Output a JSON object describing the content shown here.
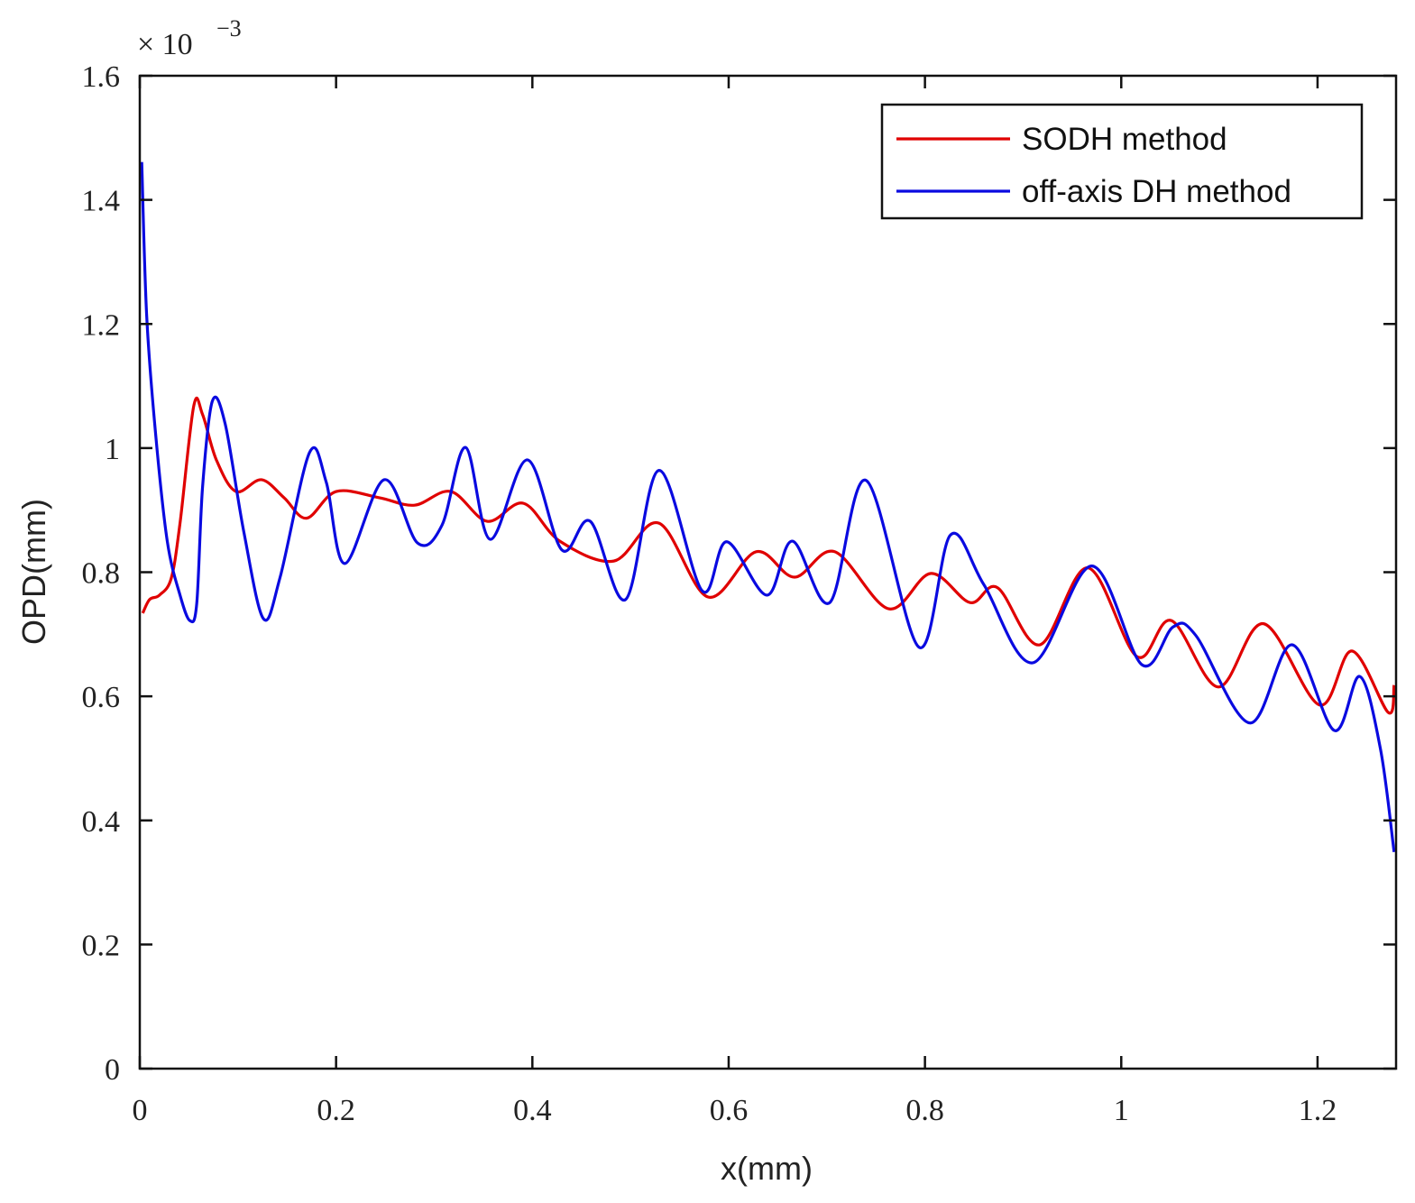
{
  "chart_data": {
    "type": "line",
    "x_label": "x(mm)",
    "y_label": "OPD(mm)",
    "y_exponent": "× 10",
    "y_exponent_power": "−3",
    "xlim": [
      0,
      1.28
    ],
    "xticks": [
      0,
      0.2,
      0.4,
      0.6,
      0.8,
      1,
      1.2
    ],
    "ylim": [
      0,
      1.6
    ],
    "yticks": [
      0,
      0.2,
      0.4,
      0.6,
      0.8,
      1,
      1.2,
      1.4,
      1.6
    ],
    "grid": false,
    "legend_position": "northeast",
    "series": [
      {
        "name": "SODH method",
        "color": "#e00000",
        "x": [
          0.003,
          0.01,
          0.02,
          0.032,
          0.041,
          0.055,
          0.064,
          0.078,
          0.098,
          0.124,
          0.147,
          0.17,
          0.2,
          0.244,
          0.28,
          0.317,
          0.354,
          0.391,
          0.428,
          0.483,
          0.529,
          0.579,
          0.628,
          0.667,
          0.708,
          0.763,
          0.806,
          0.846,
          0.874,
          0.917,
          0.966,
          1.016,
          1.051,
          1.099,
          1.145,
          1.202,
          1.235,
          1.272,
          1.278
        ],
        "values": [
          0.734,
          0.756,
          0.763,
          0.79,
          0.879,
          1.068,
          1.054,
          0.981,
          0.93,
          0.949,
          0.92,
          0.887,
          0.93,
          0.92,
          0.908,
          0.93,
          0.882,
          0.911,
          0.85,
          0.818,
          0.879,
          0.76,
          0.833,
          0.792,
          0.833,
          0.741,
          0.798,
          0.751,
          0.775,
          0.683,
          0.807,
          0.664,
          0.722,
          0.615,
          0.717,
          0.586,
          0.673,
          0.574,
          0.618
        ]
      },
      {
        "name": "off-axis DH method",
        "color": "#0a0ae0",
        "x": [
          0.002,
          0.007,
          0.016,
          0.028,
          0.041,
          0.051,
          0.058,
          0.064,
          0.074,
          0.087,
          0.106,
          0.126,
          0.143,
          0.173,
          0.19,
          0.209,
          0.249,
          0.283,
          0.308,
          0.332,
          0.357,
          0.395,
          0.43,
          0.459,
          0.495,
          0.529,
          0.573,
          0.598,
          0.639,
          0.665,
          0.703,
          0.74,
          0.794,
          0.826,
          0.86,
          0.91,
          0.97,
          1.021,
          1.053,
          1.076,
          1.131,
          1.174,
          1.217,
          1.243,
          1.264,
          1.278
        ],
        "values": [
          1.461,
          1.214,
          1.025,
          0.85,
          0.763,
          0.722,
          0.749,
          0.938,
          1.076,
          1.039,
          0.865,
          0.725,
          0.792,
          0.993,
          0.945,
          0.814,
          0.949,
          0.847,
          0.876,
          1.001,
          0.853,
          0.981,
          0.836,
          0.882,
          0.756,
          0.964,
          0.77,
          0.849,
          0.763,
          0.85,
          0.751,
          0.948,
          0.679,
          0.86,
          0.78,
          0.654,
          0.81,
          0.651,
          0.712,
          0.698,
          0.557,
          0.683,
          0.545,
          0.632,
          0.516,
          0.349
        ]
      }
    ]
  }
}
